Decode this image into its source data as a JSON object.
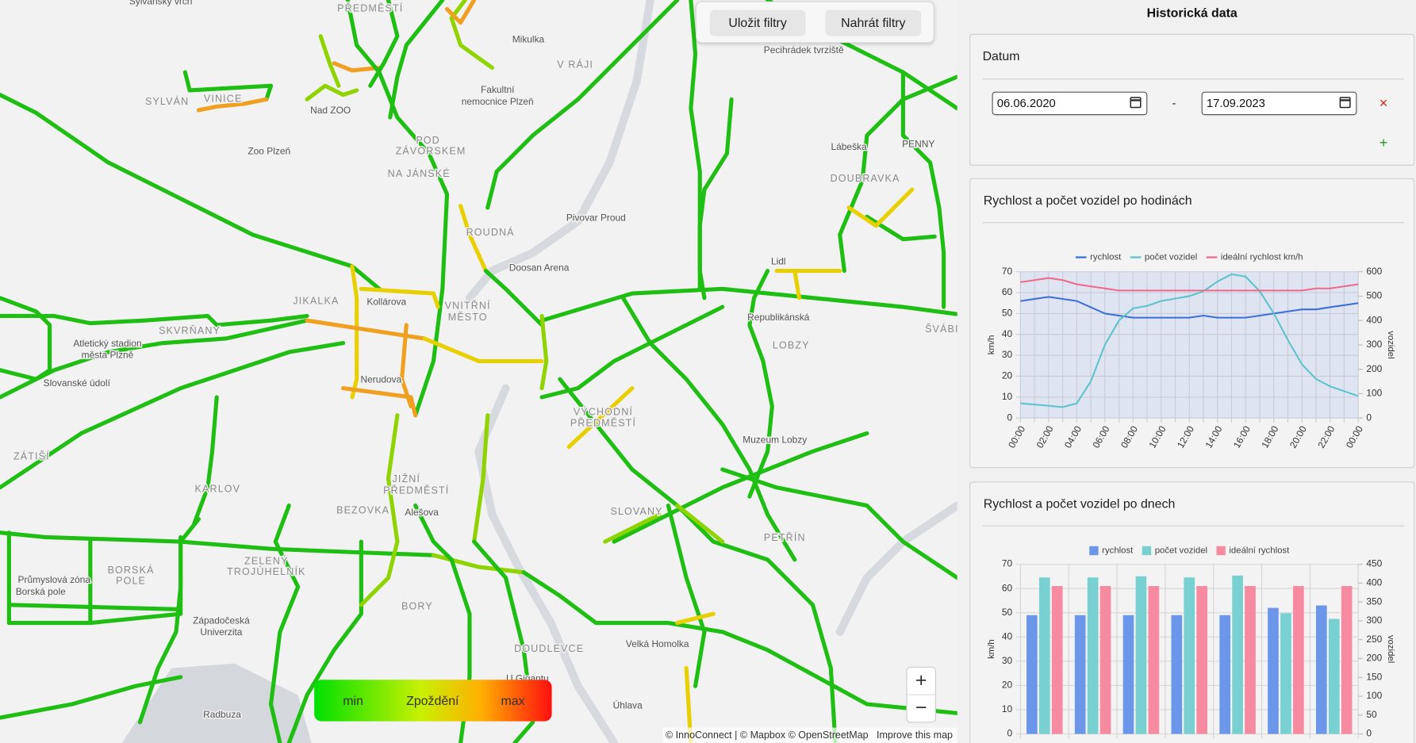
{
  "header": {
    "title": "Historická data"
  },
  "map": {
    "labels": [
      "Sylvánský vrch",
      "PŘEDMĚSTÍ",
      "Mikulka",
      "V RÁJI",
      "Pecihrádek tvrziště",
      "SYLVÁN",
      "VINICE",
      "Nad ZOO",
      "Fakultní",
      "nemocnice Plzeň",
      "Zoo Plzeň",
      "POD",
      "ZÁVORSKEM",
      "NA JÁNSKÉ",
      "Lábeška",
      "PENNY",
      "DOUBRAVKA",
      "Pivovar Proud",
      "ROUDNÁ",
      "Doosan Arena",
      "Lidl",
      "JIKALKA",
      "Kollárova",
      "VNITŘNÍ",
      "MĚSTO",
      "Republikánská",
      "LOBZY",
      "ŠVÁBI",
      "Atletický stadion",
      "města Plzně",
      "SKVRŇANY",
      "Nerudova",
      "Slovanské údolí",
      "VÝCHODNÍ",
      "PŘEDMĚSTÍ",
      "Muzeum Lobzy",
      "ZÁTIŠÍ",
      "KARLOV",
      "JIŽNÍ",
      "PŘEDMĚSTÍ",
      "BEZOVKA",
      "Alešova",
      "SLOVANY",
      "PETŘÍN",
      "BORSKÁ",
      "POLE",
      "ZELENÝ",
      "TROJÚHELNÍK",
      "Průmyslová zóna",
      "Borská pole",
      "BORY",
      "Západočeská",
      "Univerzita",
      "DOUDLEVCE",
      "Velká Homolka",
      "U Gigantu",
      "Radbuza",
      "Úhlava"
    ],
    "filters": {
      "save": "Uložit filtry",
      "load": "Nahrát filtry"
    },
    "legend": {
      "min": "min",
      "title": "Zpoždění",
      "max": "max"
    },
    "zoom": {
      "in": "+",
      "out": "−"
    },
    "attribution": "© InnoConnect | © Mapbox © OpenStreetMap",
    "improve": "Improve this map"
  },
  "date_filter": {
    "title": "Datum",
    "from": "06.06.2020",
    "separator": "-",
    "to": "17.09.2023",
    "remove": "×",
    "add": "+"
  },
  "chart_data": [
    {
      "type": "line",
      "title": "Rychlost a počet vozidel po hodinách",
      "categories": [
        "00:00",
        null,
        "02:00",
        null,
        "04:00",
        null,
        "06:00",
        null,
        "08:00",
        null,
        "10:00",
        null,
        "12:00",
        null,
        "14:00",
        null,
        "16:00",
        null,
        "18:00",
        null,
        "20:00",
        null,
        "22:00",
        null,
        "00:00"
      ],
      "series": [
        {
          "name": "rychlost",
          "color": "#3a6fd8",
          "values": [
            56,
            57,
            58,
            57,
            56,
            53,
            50,
            49,
            48,
            48,
            48,
            48,
            48,
            49,
            48,
            48,
            48,
            49,
            50,
            51,
            52,
            52,
            53,
            54,
            55
          ]
        },
        {
          "name": "počet vozidel",
          "color": "#5bc3c9",
          "axis": "y2",
          "values": [
            60,
            55,
            50,
            45,
            60,
            150,
            300,
            400,
            450,
            460,
            480,
            490,
            500,
            520,
            560,
            590,
            580,
            520,
            430,
            320,
            220,
            160,
            130,
            110,
            90
          ]
        },
        {
          "name": "ideální rychlost km/h",
          "color": "#f0688a",
          "values": [
            65,
            66,
            67,
            66,
            64,
            63,
            62,
            61,
            61,
            61,
            61,
            61,
            61,
            61,
            61,
            61,
            61,
            61,
            61,
            61,
            61,
            62,
            62,
            63,
            64
          ]
        }
      ],
      "ylim": [
        0,
        70
      ],
      "yticks": [
        0,
        10,
        20,
        30,
        40,
        50,
        60,
        70
      ],
      "y2lim": [
        0,
        600
      ],
      "y2ticks": [
        0,
        100,
        200,
        300,
        400,
        500,
        600
      ],
      "ylabel": "km/h",
      "y2label": "vozidel",
      "grid": true,
      "legend": "top",
      "plot_background": "#dfe4f3"
    },
    {
      "type": "bar",
      "title": "Rychlost a počet vozidel po dnech",
      "categories": [
        null,
        null,
        null,
        null,
        null,
        null,
        null
      ],
      "series": [
        {
          "name": "rychlost",
          "color": "#6b96ea",
          "values": [
            49,
            49,
            49,
            49,
            49,
            52,
            53
          ]
        },
        {
          "name": "počet vozidel",
          "color": "#78d0d0",
          "axis": "y2",
          "values": [
            415,
            415,
            418,
            415,
            420,
            320,
            305
          ]
        },
        {
          "name": "ideální rychlost",
          "color": "#f58aa0",
          "values": [
            61,
            61,
            61,
            61,
            61,
            61,
            61
          ]
        }
      ],
      "ylim": [
        0,
        70
      ],
      "yticks": [
        0,
        10,
        20,
        30,
        40,
        50,
        60,
        70
      ],
      "y2lim": [
        0,
        450
      ],
      "y2ticks": [
        0,
        50,
        100,
        150,
        200,
        250,
        300,
        350,
        400,
        450
      ],
      "ylabel": "km/h",
      "y2label": "vozidel",
      "grid": true,
      "legend": "top"
    }
  ]
}
